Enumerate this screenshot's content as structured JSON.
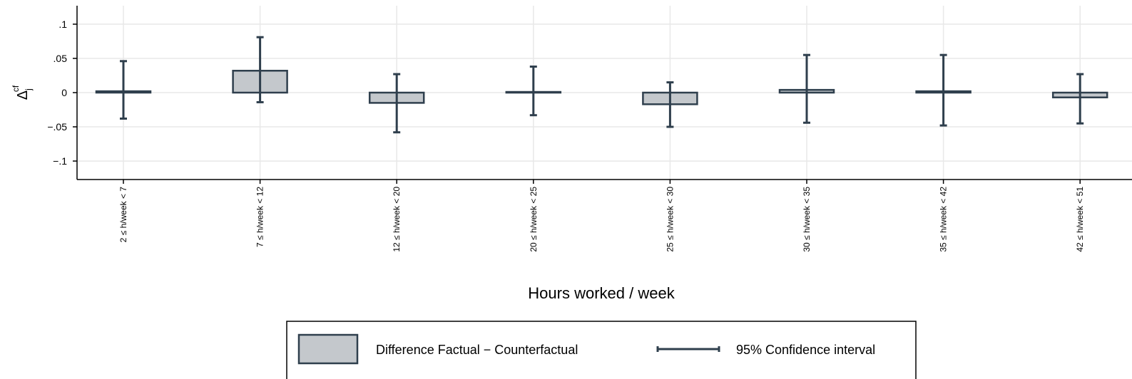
{
  "chart_data": {
    "type": "bar",
    "x_label": "Hours worked / week",
    "y_label": "Δ",
    "y_label_sub": "j",
    "y_label_sup": "cf",
    "categories": [
      "2 ≤ h/week < 7",
      "7 ≤ h/week < 12",
      "12 ≤ h/week < 20",
      "20 ≤ h/week < 25",
      "25 ≤ h/week < 30",
      "30 ≤ h/week < 35",
      "35 ≤ h/week < 42",
      "42 ≤ h/week < 51"
    ],
    "series": [
      {
        "name": "Difference Factual − Counterfactual",
        "color": "#c4c8cc",
        "values": [
          0.002,
          0.032,
          -0.015,
          0.001,
          -0.017,
          0.004,
          0.002,
          -0.007
        ]
      }
    ],
    "ci": {
      "name": "95% Confidence interval",
      "color": "#2f3f4d",
      "lower": [
        -0.038,
        -0.014,
        -0.058,
        -0.033,
        -0.05,
        -0.044,
        -0.048,
        -0.045
      ],
      "upper": [
        0.046,
        0.081,
        0.027,
        0.038,
        0.015,
        0.055,
        0.055,
        0.027
      ]
    },
    "ylim": [
      -0.127,
      0.127
    ],
    "yticks": [
      {
        "value": -0.1,
        "label": "−.1"
      },
      {
        "value": -0.05,
        "label": "−.05"
      },
      0,
      {
        "value": 0.05,
        "label": ".05"
      },
      {
        "value": 0.1,
        "label": ".1"
      }
    ],
    "grid": true
  }
}
